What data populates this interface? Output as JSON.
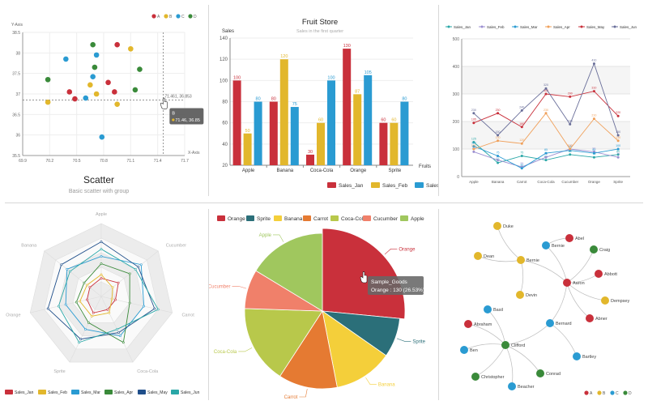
{
  "colors": {
    "red": "#c9303b",
    "yellow": "#e2b72c",
    "blue": "#2a9bd2",
    "green": "#3a8a3a",
    "teal": "#2b6f79",
    "orange": "#e57a32",
    "lime": "#a0c75e",
    "salmon": "#f0806a",
    "banana": "#f4cf3a",
    "cocacola": "#b8c84b",
    "navy": "#1f4e8a",
    "cyan": "#2aa7a7"
  },
  "chart_data": [
    {
      "type": "scatter",
      "title": "Scatter",
      "subtitle": "Basic scatter with group",
      "xlabel": "X-Axis",
      "ylabel": "Y-Axis",
      "xlim": [
        69.9,
        71.7
      ],
      "ylim": [
        35.5,
        38.5
      ],
      "x_ticks": [
        "69.9",
        "70.2",
        "70.5",
        "70.8",
        "71.1",
        "71.4",
        "71.7"
      ],
      "y_ticks": [
        "35.5",
        "36",
        "36.5",
        "37",
        "37.5",
        "38",
        "38.5"
      ],
      "legend": [
        "A",
        "B",
        "C",
        "D"
      ],
      "series": [
        {
          "name": "A",
          "color": "red",
          "points": [
            [
              70.95,
              38.2
            ],
            [
              70.42,
              37.05
            ],
            [
              70.48,
              36.88
            ],
            [
              70.85,
              37.28
            ],
            [
              70.92,
              37.05
            ]
          ]
        },
        {
          "name": "B",
          "color": "yellow",
          "points": [
            [
              71.1,
              38.1
            ],
            [
              70.18,
              36.8
            ],
            [
              70.65,
              37.22
            ],
            [
              70.72,
              37.0
            ],
            [
              70.95,
              36.75
            ]
          ]
        },
        {
          "name": "C",
          "color": "blue",
          "points": [
            [
              70.38,
              37.85
            ],
            [
              70.72,
              37.95
            ],
            [
              70.68,
              37.42
            ],
            [
              70.78,
              35.95
            ],
            [
              70.6,
              36.9
            ]
          ]
        },
        {
          "name": "D",
          "color": "green",
          "points": [
            [
              70.68,
              38.2
            ],
            [
              70.18,
              37.35
            ],
            [
              70.7,
              37.65
            ],
            [
              71.2,
              37.6
            ],
            [
              71.15,
              37.1
            ]
          ]
        }
      ],
      "crosshair": {
        "x": 71.46,
        "y": 36.853,
        "label": "71.461, 36.853"
      },
      "tooltip": {
        "series": "B",
        "text": "71.46, 36.85"
      }
    },
    {
      "type": "bar",
      "title": "Fruit Store",
      "subtitle": "Sales in the first quarter",
      "ylabel": "Sales",
      "xlabel": "Fruits",
      "ylim": [
        20,
        140
      ],
      "y_ticks": [
        "20",
        "40",
        "60",
        "80",
        "100",
        "120",
        "140"
      ],
      "categories": [
        "Apple",
        "Banana",
        "Coca-Cola",
        "Orange",
        "Sprite"
      ],
      "series": [
        {
          "name": "Sales_Jan",
          "color": "red",
          "values": [
            100,
            80,
            30,
            130,
            60
          ]
        },
        {
          "name": "Sales_Feb",
          "color": "yellow",
          "values": [
            50,
            120,
            60,
            87,
            60
          ]
        },
        {
          "name": "Sales_Mar",
          "color": "blue",
          "values": [
            80,
            75,
            100,
            105,
            80
          ]
        }
      ]
    },
    {
      "type": "line",
      "ylim": [
        0,
        500
      ],
      "y_ticks": [
        "0",
        "100",
        "200",
        "300",
        "400",
        "500"
      ],
      "categories": [
        "Apple",
        "Banana",
        "Carrot",
        "Coca-Cola",
        "Cucumber",
        "Orange",
        "Sprite"
      ],
      "series": [
        {
          "name": "Sales_Jan",
          "color": "cyan",
          "values": [
            125,
            50,
            75,
            60,
            80,
            70,
            80
          ]
        },
        {
          "name": "Sales_Feb",
          "color": "#9b8fd1",
          "values": [
            90,
            60,
            35,
            70,
            100,
            90,
            70
          ]
        },
        {
          "name": "Sales_Mar",
          "color": "blue",
          "values": [
            110,
            75,
            30,
            85,
            95,
            85,
            100
          ]
        },
        {
          "name": "Sales_Apr",
          "color": "#f0a05a",
          "values": [
            100,
            130,
            120,
            230,
            100,
            210,
            130
          ]
        },
        {
          "name": "Sales_May",
          "color": "red",
          "values": [
            195,
            230,
            180,
            300,
            290,
            310,
            220
          ]
        },
        {
          "name": "Sales_Jun",
          "color": "#6a6f9a",
          "values": [
            230,
            150,
            240,
            320,
            190,
            410,
            150
          ]
        }
      ]
    },
    {
      "type": "radar",
      "indicators": [
        "Apple",
        "Cucumber",
        "Carrot",
        "Coca-Cola",
        "Sprite",
        "Orange",
        "Banana"
      ],
      "max": 200,
      "series": [
        {
          "name": "Sales_Jan",
          "color": "red",
          "values": [
            50,
            60,
            40,
            40,
            50,
            40,
            40
          ]
        },
        {
          "name": "Sales_Feb",
          "color": "yellow",
          "values": [
            60,
            40,
            30,
            50,
            60,
            60,
            50
          ]
        },
        {
          "name": "Sales_Mar",
          "color": "blue",
          "values": [
            110,
            140,
            120,
            120,
            100,
            100,
            120
          ]
        },
        {
          "name": "Sales_Apr",
          "color": "green",
          "values": [
            90,
            100,
            80,
            140,
            80,
            70,
            60
          ]
        },
        {
          "name": "Sales_May",
          "color": "navy",
          "values": [
            150,
            130,
            150,
            110,
            130,
            150,
            140
          ]
        },
        {
          "name": "Sales_Jun",
          "color": "cyan",
          "values": [
            130,
            120,
            160,
            100,
            140,
            120,
            110
          ]
        }
      ]
    },
    {
      "type": "pie",
      "legend": [
        "Orange",
        "Sprite",
        "Banana",
        "Carrot",
        "Coca-Cola",
        "Cucumber",
        "Apple"
      ],
      "slices": [
        {
          "label": "Orange",
          "value": 130,
          "color": "red"
        },
        {
          "label": "Sprite",
          "value": 40,
          "color": "teal"
        },
        {
          "label": "Banana",
          "value": 60,
          "color": "banana"
        },
        {
          "label": "Carrot",
          "value": 60,
          "color": "orange"
        },
        {
          "label": "Coca-Cola",
          "value": 80,
          "color": "cocacola"
        },
        {
          "label": "Cucumber",
          "value": 40,
          "color": "salmon"
        },
        {
          "label": "Apple",
          "value": 80,
          "color": "lime"
        }
      ],
      "tooltip": {
        "series": "Sample_Goods",
        "text": "Orange : 130 (26.53%)"
      }
    },
    {
      "type": "graph",
      "legend": [
        "A",
        "B",
        "C",
        "D"
      ],
      "nodes": [
        {
          "label": "Duke",
          "color": "yellow"
        },
        {
          "label": "Dean",
          "color": "yellow"
        },
        {
          "label": "Bernie",
          "color": "yellow"
        },
        {
          "label": "Devin",
          "color": "yellow"
        },
        {
          "label": "Bernie",
          "color": "blue"
        },
        {
          "label": "Abel",
          "color": "red"
        },
        {
          "label": "Craig",
          "color": "green"
        },
        {
          "label": "Abbott",
          "color": "red"
        },
        {
          "label": "Aaron",
          "color": "red"
        },
        {
          "label": "Dempsey",
          "color": "yellow"
        },
        {
          "label": "Abner",
          "color": "red"
        },
        {
          "label": "Basil",
          "color": "blue"
        },
        {
          "label": "Abraham",
          "color": "red"
        },
        {
          "label": "Bernard",
          "color": "blue"
        },
        {
          "label": "Ben",
          "color": "blue"
        },
        {
          "label": "Clifford",
          "color": "green"
        },
        {
          "label": "Bartley",
          "color": "blue"
        },
        {
          "label": "Christopher",
          "color": "green"
        },
        {
          "label": "Conrad",
          "color": "green"
        },
        {
          "label": "Beacher",
          "color": "blue"
        }
      ]
    }
  ]
}
